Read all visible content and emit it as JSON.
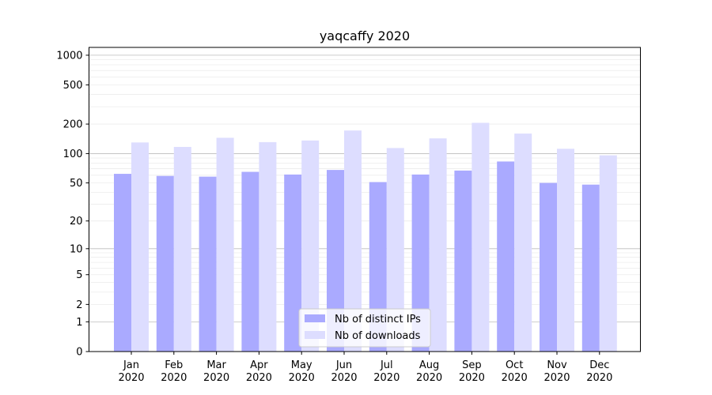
{
  "chart_data": {
    "type": "bar",
    "title": "yaqcaffy 2020",
    "xlabel": "",
    "ylabel": "",
    "yscale": "symlog",
    "ylim": [
      0,
      1200
    ],
    "yticks": [
      0,
      1,
      2,
      5,
      10,
      20,
      50,
      100,
      200,
      500,
      1000
    ],
    "categories": [
      "Jan\n2020",
      "Feb\n2020",
      "Mar\n2020",
      "Apr\n2020",
      "May\n2020",
      "Jun\n2020",
      "Jul\n2020",
      "Aug\n2020",
      "Sep\n2020",
      "Oct\n2020",
      "Nov\n2020",
      "Dec\n2020"
    ],
    "series": [
      {
        "name": "Nb of distinct IPs",
        "color": "#aaaaff",
        "values": [
          62,
          59,
          58,
          65,
          61,
          68,
          51,
          61,
          67,
          83,
          50,
          48
        ]
      },
      {
        "name": "Nb of downloads",
        "color": "#ddddff",
        "values": [
          130,
          117,
          145,
          131,
          136,
          172,
          114,
          143,
          206,
          160,
          112,
          96
        ]
      }
    ],
    "grid": true,
    "legend": "bottom-center"
  }
}
